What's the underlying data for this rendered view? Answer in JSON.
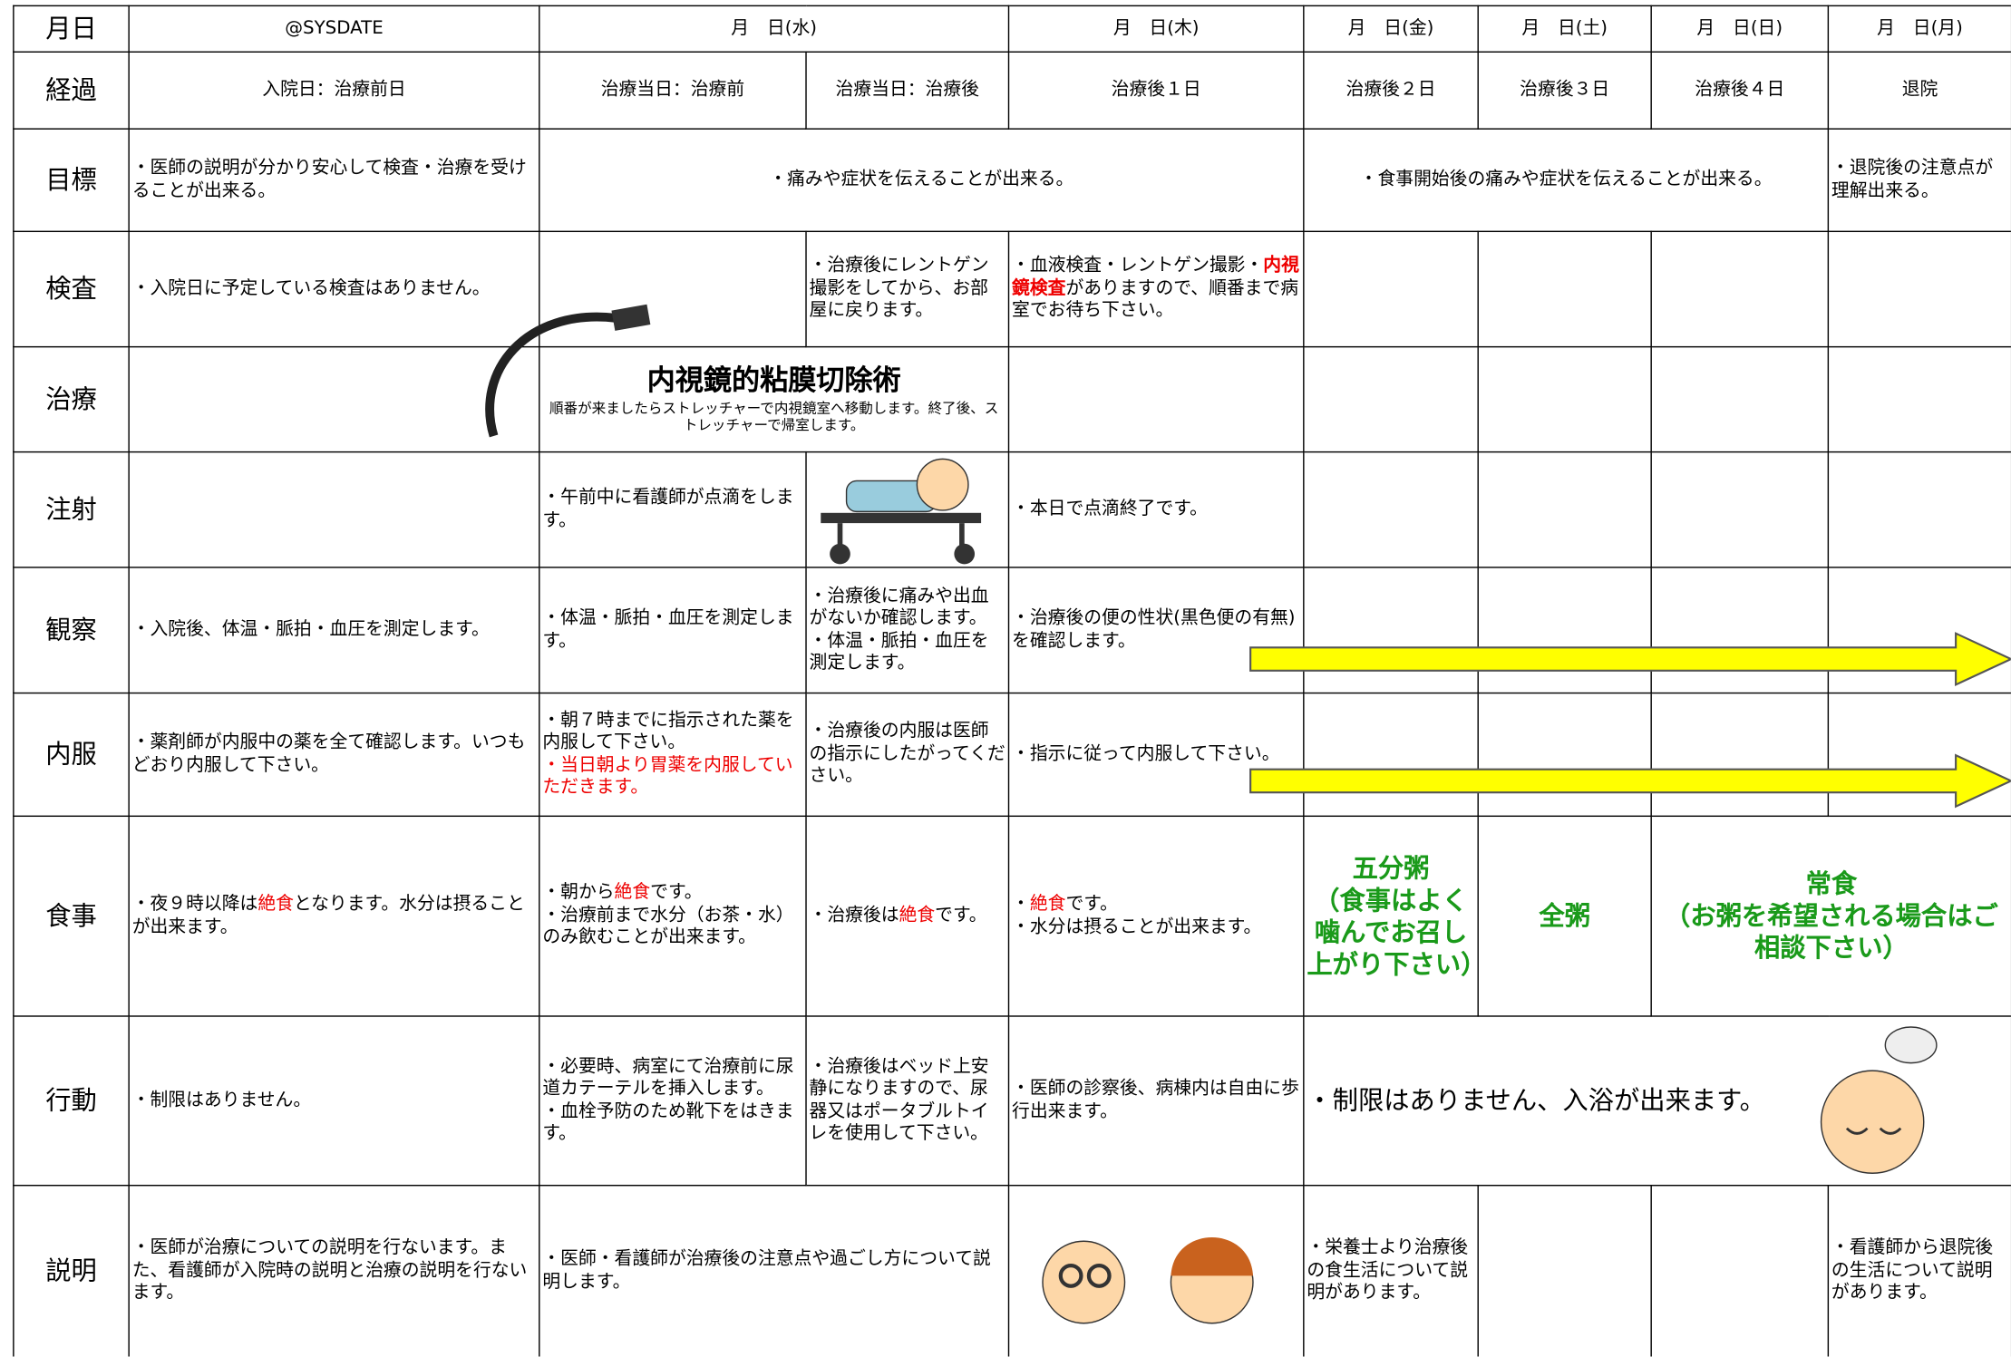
{
  "rows": [
    {
      "label": "月日",
      "cells": [
        "@SYSDATE",
        "月　日(水)",
        "月　日(木)",
        "月　日(金)",
        "月　日(土)",
        "月　日(日)",
        "月　日(月)"
      ]
    },
    {
      "label": "経過",
      "cells": [
        "入院日：治療前日",
        "治療当日：治療前",
        "治療当日：治療後",
        "治療後１日",
        "治療後２日",
        "治療後３日",
        "治療後４日",
        "退院"
      ]
    },
    {
      "label": "目標",
      "cells": [
        "・医師の説明が分かり安心して検査・治療を受けることが出来る。",
        "・痛みや症状を伝えることが出来る。",
        "・食事開始後の痛みや症状を伝えることが出来る。",
        "・退院後の注意点が理解出来る。"
      ]
    },
    {
      "label": "検査",
      "cells": [
        "・入院日に予定している検査はありません。",
        "・治療後にレントゲン撮影をしてから、お部屋に戻ります。",
        [
          "・血液検査・レントゲン撮影・",
          "内視鏡検査",
          "がありますので、順番まで病室でお待ち下さい。"
        ]
      ]
    },
    {
      "label": "治療",
      "cells": [
        "内視鏡的粘膜切除術",
        "順番が来ましたらストレッチャーで内視鏡室へ移動します。終了後、ストレッチャーで帰室します。"
      ]
    },
    {
      "label": "注射",
      "cells": [
        "・午前中に看護師が点滴をします。",
        "・本日で点滴終了です。"
      ]
    },
    {
      "label": "観察",
      "cells": [
        "・入院後、体温・脈拍・血圧を測定します。",
        "・体温・脈拍・血圧を測定します。",
        "・治療後に痛みや出血がないか確認します。\n・体温・脈拍・血圧を測定します。",
        "・治療後の便の性状(黒色便の有無)を確認します。"
      ]
    },
    {
      "label": "内服",
      "cells": [
        "・薬剤師が内服中の薬を全て確認します。いつもどおり内服して下さい。",
        [
          "・朝７時までに指示された薬を内服して下さい。\n",
          "・当日朝より胃薬を内服していただきます。"
        ],
        "・治療後の内服は医師の指示にしたがってください。",
        "・指示に従って内服して下さい。"
      ]
    },
    {
      "label": "食事",
      "cells": [
        [
          "・夜９時以降は",
          "絶食",
          "となります。水分は摂ることが出来ます。"
        ],
        [
          "・朝から",
          "絶食",
          "です。\n・治療前まで水分（お茶・水）のみ飲むことが出来ます。"
        ],
        [
          "・治療後は",
          "絶食",
          "です。"
        ],
        [
          "・",
          "絶食",
          "です。\n・水分は摂ることが出来ます。"
        ],
        "五分粥\n（食事はよく噛んでお召し上がり下さい）",
        "全粥",
        "常食\n（お粥を希望される場合はご相談下さい）"
      ]
    },
    {
      "label": "行動",
      "cells": [
        "・制限はありません。",
        "・必要時、病室にて治療前に尿道カテーテルを挿入します。\n・血栓予防のため靴下をはきます。",
        "・治療後はベッド上安静になりますので、尿器又はポータブルトイレを使用して下さい。",
        "・医師の診察後、病棟内は自由に歩行出来ます。",
        "・制限はありません、入浴が出来ます。"
      ]
    },
    {
      "label": "説明",
      "cells": [
        "・医師が治療についての説明を行ないます。また、看護師が入院時の説明と治療の説明を行ないます。",
        "・医師・看護師が治療後の注意点や過ごし方について説明します。",
        "・栄養士より治療後の食生活について説明があります。",
        "・看護師から退院後の生活について説明があります。"
      ]
    }
  ]
}
